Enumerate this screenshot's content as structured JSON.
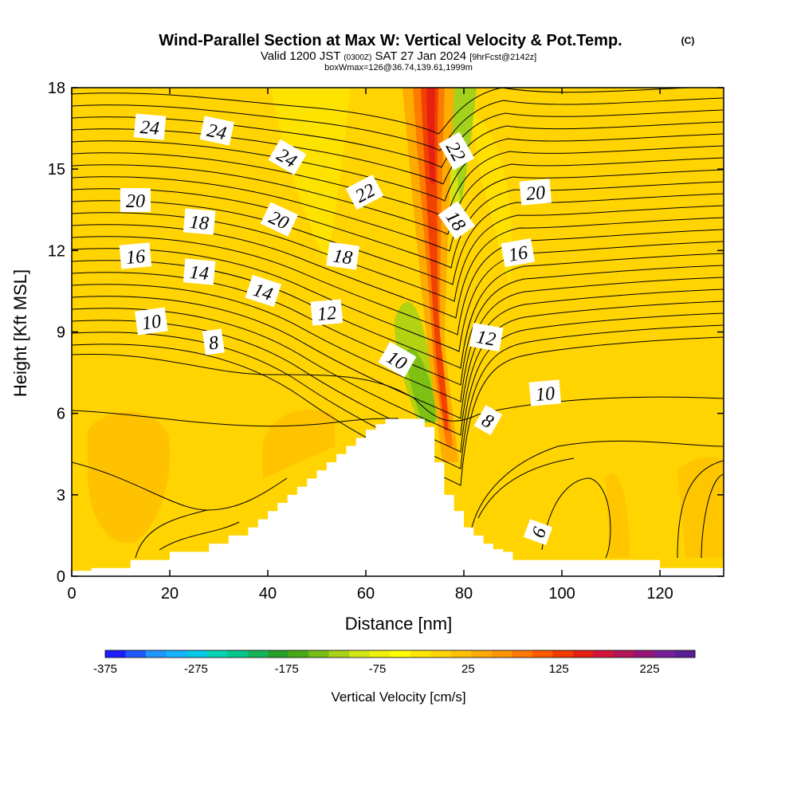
{
  "title": {
    "main": "Wind-Parallel Section at Max W: Vertical Velocity & Pot.Temp.",
    "copyright": "(C)",
    "valid_prefix": "Valid 1200 JST",
    "valid_utc": "(0300Z)",
    "valid_date": "SAT 27 Jan 2024",
    "forecast": "[9hrFcst@2142z]",
    "box_info": "boxWmax=126@36.74,139.61,1999m"
  },
  "colors": {
    "background_field": "#ffd400",
    "terrain": "#ffffff"
  },
  "chart_data": {
    "type": "heatmap",
    "xlabel": "Distance [nm]",
    "ylabel": "Height [Kft MSL]",
    "xlim": [
      0,
      133
    ],
    "ylim": [
      0,
      18
    ],
    "x_ticks": [
      "0",
      "20",
      "40",
      "60",
      "80",
      "100",
      "120"
    ],
    "y_ticks": [
      "0",
      "3",
      "6",
      "9",
      "12",
      "15",
      "18"
    ],
    "colorbar": {
      "label": "Vertical Velocity [cm/s]",
      "tick_labels": [
        "-375",
        "-275",
        "-175",
        "-75",
        "25",
        "125",
        "225"
      ],
      "range": [
        -375,
        275
      ],
      "colors": [
        "#1e1eff",
        "#1e5aff",
        "#1e96ff",
        "#14b4ff",
        "#00c8e6",
        "#00d2b4",
        "#00c88c",
        "#14b45a",
        "#28a028",
        "#46aa14",
        "#78be14",
        "#aad214",
        "#d2e614",
        "#f0f00a",
        "#ffff00",
        "#ffe600",
        "#ffd400",
        "#ffc000",
        "#ffaa00",
        "#ff9600",
        "#ff7800",
        "#ff5a00",
        "#f03c00",
        "#e61e14",
        "#d2143c",
        "#b4145a",
        "#961478",
        "#781e96",
        "#5a1e96"
      ]
    },
    "terrain_profile": {
      "x": [
        0,
        4,
        8,
        12,
        16,
        20,
        24,
        28,
        32,
        36,
        38,
        40,
        42,
        44,
        46,
        48,
        50,
        52,
        54,
        56,
        58,
        60,
        62,
        64,
        66,
        68,
        70,
        72,
        74,
        76,
        78,
        80,
        82,
        84,
        86,
        88,
        90,
        92,
        94,
        96,
        100,
        104,
        108,
        112,
        116,
        120,
        124,
        128,
        133
      ],
      "height_kft": [
        0.2,
        0.3,
        0.3,
        0.6,
        0.6,
        0.9,
        0.9,
        1.2,
        1.5,
        1.8,
        2.1,
        2.4,
        2.7,
        3.0,
        3.3,
        3.6,
        3.9,
        4.2,
        4.5,
        4.8,
        5.1,
        5.4,
        5.6,
        5.8,
        5.8,
        5.8,
        5.8,
        5.5,
        4.2,
        3.0,
        2.4,
        1.8,
        1.5,
        1.2,
        1.0,
        0.9,
        0.6,
        0.6,
        0.6,
        0.6,
        0.6,
        0.6,
        0.6,
        0.6,
        0.6,
        0.3,
        0.3,
        0.3,
        0.3
      ]
    },
    "updraft_zone": {
      "x_start": 71,
      "x_end": 80,
      "peak_w_cm_s": 126
    },
    "potential_temperature": {
      "contour_labels": [
        "24",
        "24",
        "24",
        "22",
        "22",
        "20",
        "20",
        "20",
        "18",
        "18",
        "18",
        "16",
        "16",
        "14",
        "14",
        "12",
        "12",
        "10",
        "10",
        "10",
        "8",
        "8",
        "6"
      ]
    }
  }
}
